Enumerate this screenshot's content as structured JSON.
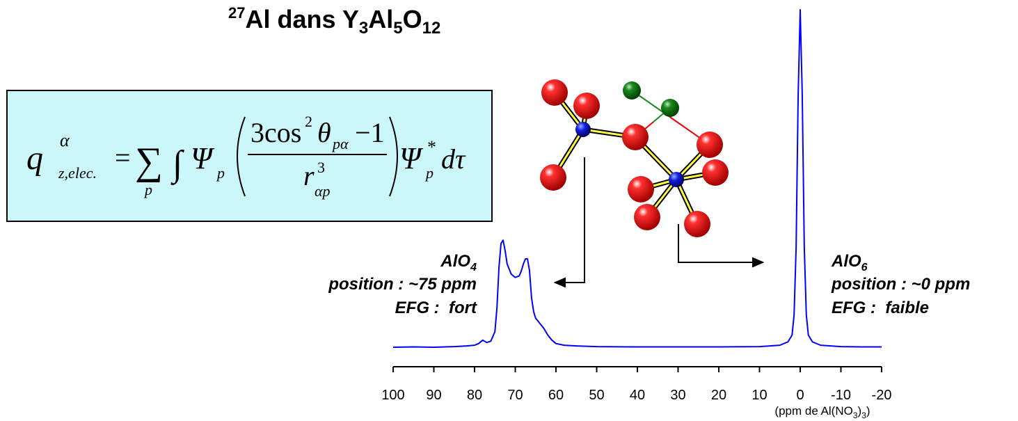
{
  "chart_data": {
    "type": "line",
    "title": [
      "27",
      "Al dans Y",
      "3",
      "Al",
      "5",
      "O",
      "12"
    ],
    "x_label": [
      "(ppm de Al(NO",
      "3",
      ")",
      "3",
      ")"
    ],
    "x": [
      100,
      95,
      90,
      85,
      82,
      80,
      79,
      78,
      77,
      76,
      75,
      74.5,
      74,
      73.5,
      73,
      72.5,
      72,
      71,
      70,
      69,
      68.5,
      68,
      67.5,
      67,
      66.5,
      66,
      65.5,
      65,
      64,
      63,
      62,
      61,
      60,
      58,
      55,
      50,
      40,
      30,
      20,
      10,
      5,
      3,
      2,
      1.5,
      1,
      0.5,
      0,
      -0.5,
      -1,
      -1.5,
      -2,
      -3,
      -5,
      -10,
      -15,
      -20
    ],
    "series": [
      {
        "color": "#0000ff",
        "values": [
          0.4,
          0.5,
          0.4,
          0.6,
          0.8,
          1,
          1.5,
          2.5,
          1.8,
          2.2,
          5,
          12,
          24,
          31,
          32,
          29,
          25,
          22,
          21,
          21.5,
          23,
          25,
          26.5,
          26.5,
          23,
          15,
          11,
          9,
          7.5,
          6,
          4,
          2.5,
          1.5,
          1,
          0.8,
          0.6,
          0.5,
          0.5,
          0.5,
          0.6,
          1,
          2,
          4,
          10,
          30,
          75,
          100,
          75,
          30,
          10,
          4,
          2,
          1,
          0.6,
          0.5,
          0.5
        ]
      }
    ],
    "xlim": [
      100,
      -20
    ],
    "xticks": [
      100,
      90,
      80,
      70,
      60,
      50,
      40,
      30,
      20,
      10,
      0,
      -10,
      -20
    ],
    "annotations": [
      {
        "name": [
          "AlO",
          "4"
        ],
        "position": "position : ~75 ppm",
        "efg": "EFG :  fort"
      },
      {
        "name": [
          "AlO",
          "6"
        ],
        "position": "position : ~0 ppm",
        "efg": "EFG :  faible"
      }
    ]
  },
  "formula": [
    "q",
    "α",
    "z,elec.",
    "=",
    "∑",
    "p",
    "∫",
    "Ψ",
    "p",
    "3cos",
    "2",
    "θ",
    "pα",
    "−1",
    "r",
    "3",
    "αp",
    "Ψ",
    "*",
    "p",
    "dτ"
  ]
}
